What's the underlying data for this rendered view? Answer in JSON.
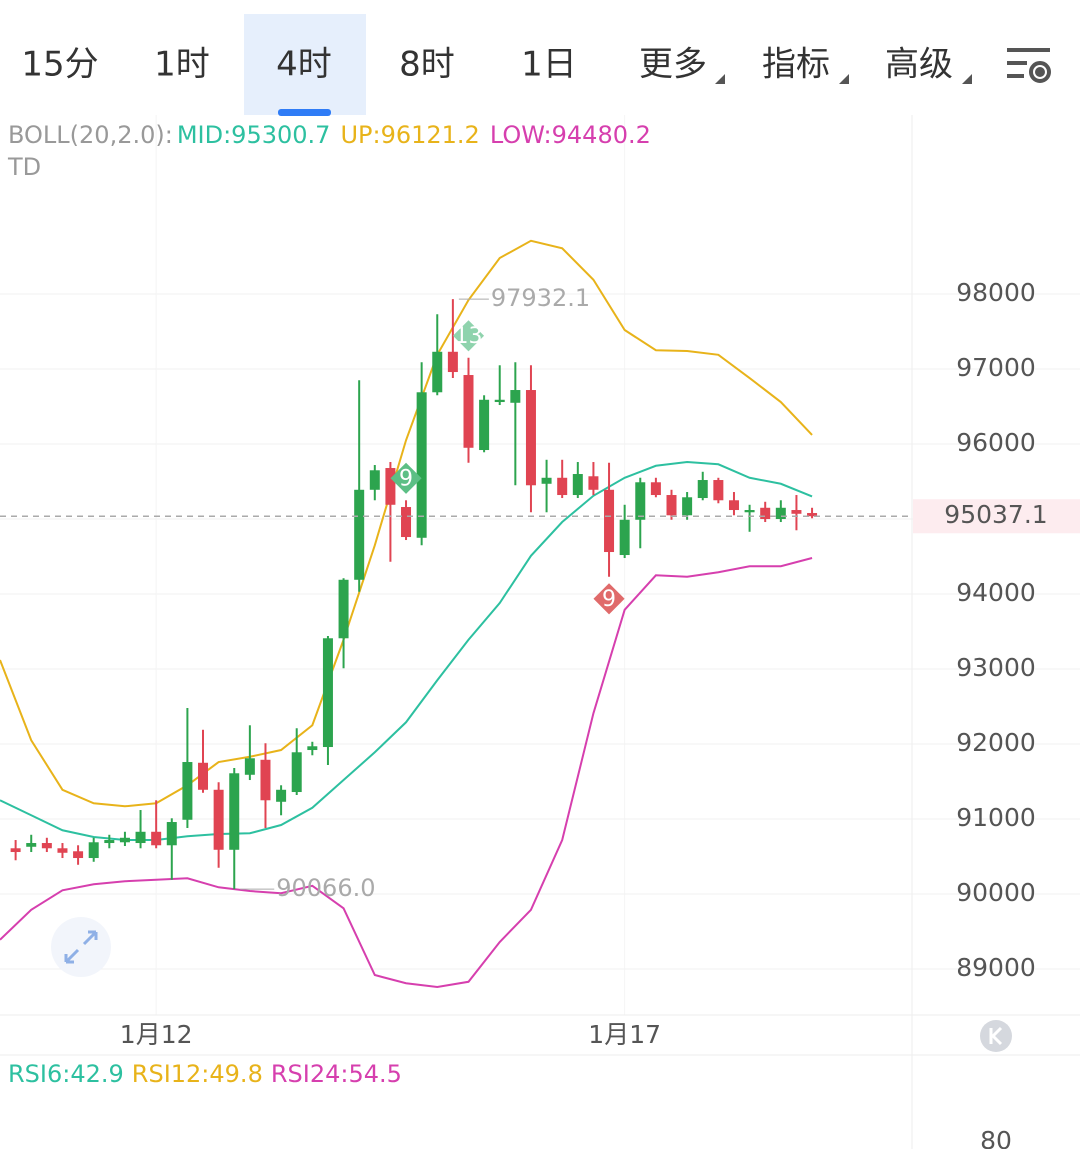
{
  "tabs": [
    "15分",
    "1时",
    "4时",
    "8时",
    "1日"
  ],
  "menus": [
    "更多",
    "指标",
    "高级"
  ],
  "active_tab": 2,
  "chart_data": {
    "type": "candlestick",
    "indicator": "BOLL(20,2.0):",
    "sub_label": "TD",
    "x": [
      1,
      2,
      3,
      4,
      5,
      6,
      7,
      8,
      9,
      10,
      11,
      12,
      13,
      14,
      15,
      16,
      17,
      18,
      19,
      20,
      21,
      22,
      23,
      24,
      25,
      26,
      27,
      28,
      29,
      30,
      31,
      32,
      33,
      34,
      35,
      36,
      37,
      38,
      39,
      40,
      41,
      42,
      43,
      44,
      45,
      46,
      47,
      48,
      49,
      50,
      51,
      52
    ],
    "open": [
      90610,
      90630,
      90680,
      90610,
      90570,
      90480,
      90680,
      90690,
      90680,
      90830,
      90650,
      90990,
      91750,
      91390,
      90590,
      91590,
      91790,
      91230,
      91360,
      91920,
      91960,
      93410,
      94190,
      95390,
      95680,
      95160,
      94750,
      96690,
      97230,
      96920,
      95920,
      96560,
      96550,
      96720,
      95470,
      95550,
      95320,
      95570,
      95390,
      94520,
      94990,
      95490,
      95320,
      95050,
      95280,
      95520,
      95250,
      95090,
      95150,
      95000,
      95120,
      95080
    ],
    "high": [
      90720,
      90790,
      90750,
      90680,
      90650,
      90750,
      90790,
      90830,
      91120,
      91250,
      91010,
      92480,
      92190,
      91490,
      91680,
      92250,
      92010,
      91450,
      92210,
      92030,
      93440,
      94210,
      96850,
      95720,
      95760,
      95250,
      97090,
      97730,
      97932.1,
      97150,
      96650,
      97050,
      97090,
      97050,
      95790,
      95790,
      95760,
      95760,
      95750,
      95190,
      95550,
      95550,
      95390,
      95360,
      95630,
      95550,
      95360,
      95190,
      95230,
      95250,
      95320,
      95150
    ],
    "low": [
      90450,
      90560,
      90560,
      90480,
      90390,
      90430,
      90610,
      90640,
      90610,
      90610,
      90190,
      90880,
      91350,
      90350,
      90066,
      91520,
      90880,
      91050,
      91320,
      91850,
      91720,
      93010,
      94030,
      95250,
      94430,
      94720,
      94650,
      96650,
      96880,
      95750,
      95890,
      96520,
      95450,
      95090,
      95090,
      95280,
      95280,
      95320,
      94230,
      94480,
      94610,
      95290,
      94990,
      94990,
      95250,
      95210,
      95050,
      94830,
      94960,
      94960,
      94850,
      95010
    ],
    "close": [
      90560,
      90680,
      90610,
      90550,
      90480,
      90690,
      90720,
      90750,
      90830,
      90650,
      90960,
      91760,
      91390,
      90590,
      91610,
      91810,
      91250,
      91390,
      91890,
      91970,
      93410,
      94190,
      95390,
      95650,
      95190,
      94760,
      96690,
      97230,
      96960,
      95950,
      96590,
      96590,
      96720,
      95450,
      95550,
      95320,
      95600,
      95390,
      94560,
      94990,
      95490,
      95320,
      95050,
      95290,
      95520,
      95250,
      95120,
      95120,
      95000,
      95150,
      95070,
      95037.1
    ],
    "up_color": "#2ca44e",
    "down_color": "#e04452",
    "bands": {
      "x": [
        0,
        2,
        4,
        6,
        8,
        10,
        12,
        14,
        16,
        18,
        20,
        22,
        24,
        26,
        28,
        30,
        32,
        34,
        36,
        38,
        40,
        42,
        44,
        46,
        48,
        50,
        52
      ],
      "series": [
        {
          "name": "MID:95300.7",
          "color": "#2dc0a0",
          "values": [
            91250,
            91050,
            90850,
            90760,
            90720,
            90720,
            90770,
            90800,
            90810,
            90920,
            91150,
            91520,
            91890,
            92290,
            92850,
            93390,
            93880,
            94510,
            94960,
            95310,
            95550,
            95710,
            95760,
            95730,
            95550,
            95470,
            95300.7
          ]
        },
        {
          "name": "UP:96121.2",
          "color": "#e8b31a",
          "values": [
            93120,
            92050,
            91390,
            91210,
            91170,
            91210,
            91450,
            91760,
            91830,
            91920,
            92250,
            93390,
            94650,
            96050,
            97190,
            97920,
            98480,
            98710,
            98610,
            98190,
            97520,
            97250,
            97240,
            97190,
            96880,
            96560,
            96121.2
          ]
        },
        {
          "name": "LOW:94480.2",
          "color": "#d63fae",
          "values": [
            89390,
            89790,
            90050,
            90130,
            90170,
            90190,
            90210,
            90090,
            90040,
            90010,
            90110,
            89810,
            88920,
            88810,
            88760,
            88830,
            89360,
            89790,
            90720,
            92410,
            93790,
            94250,
            94230,
            94290,
            94370,
            94370,
            94480.2
          ]
        }
      ]
    },
    "max_label": "97932.1",
    "min_label": "90066.0",
    "td_marks": [
      {
        "x": 26,
        "count": 9,
        "dir": "up",
        "color": "#5cbf85"
      },
      {
        "x": 30,
        "count": 13,
        "dir": "up",
        "color": "#8fd3ad"
      },
      {
        "x": 39,
        "count": 9,
        "dir": "down",
        "color": "#e06a6a"
      }
    ],
    "xlim": [
      0,
      58.4
    ],
    "ylim": [
      88387,
      100387
    ],
    "xticks": [
      {
        "value": 10,
        "label": "1月12"
      },
      {
        "value": 40,
        "label": "1月17"
      }
    ],
    "yticks": [
      89000,
      90000,
      91000,
      92000,
      93000,
      94000,
      95000,
      96000,
      97000,
      98000
    ],
    "grid": true
  },
  "rsi": {
    "legend": [
      {
        "name": "RSI6:42.9",
        "color": "#2dc0a0"
      },
      {
        "name": "RSI12:49.8",
        "color": "#e8b31a"
      },
      {
        "name": "RSI24:54.5",
        "color": "#d63fae"
      }
    ],
    "yticks": [
      80
    ]
  }
}
